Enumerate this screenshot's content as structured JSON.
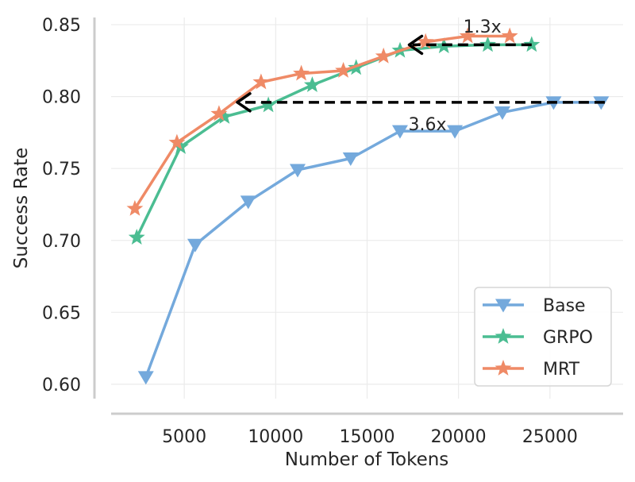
{
  "chart_data": {
    "type": "line",
    "title": "",
    "xlabel": "Number of Tokens",
    "ylabel": "Success Rate",
    "xlim": [
      1000,
      29000
    ],
    "ylim": [
      0.59,
      0.855
    ],
    "xticks": [
      5000,
      10000,
      15000,
      20000,
      25000
    ],
    "xtick_labels": [
      "5000",
      "10000",
      "15000",
      "20000",
      "25000"
    ],
    "yticks": [
      0.6,
      0.65,
      0.7,
      0.75,
      0.8,
      0.85
    ],
    "ytick_labels": [
      "0.60",
      "0.65",
      "0.70",
      "0.75",
      "0.80",
      "0.85"
    ],
    "grid": true,
    "legend_position": "bottom-right",
    "series": [
      {
        "name": "Base",
        "color": "#74a9dc",
        "marker": "triangle-down",
        "x": [
          2900,
          5600,
          8500,
          11200,
          14100,
          16800,
          19800,
          22400,
          25200,
          27800
        ],
        "y": [
          0.605,
          0.697,
          0.727,
          0.749,
          0.757,
          0.776,
          0.776,
          0.789,
          0.796,
          0.796
        ]
      },
      {
        "name": "GRPO",
        "color": "#4bbd92",
        "marker": "star",
        "x": [
          2400,
          4800,
          7200,
          9600,
          12000,
          14400,
          16800,
          19200,
          21600,
          24000
        ],
        "y": [
          0.702,
          0.765,
          0.786,
          0.794,
          0.808,
          0.82,
          0.832,
          0.835,
          0.836,
          0.836
        ]
      },
      {
        "name": "MRT",
        "color": "#ef8a66",
        "marker": "star",
        "x": [
          2300,
          4600,
          6900,
          9200,
          11400,
          13700,
          15900,
          18200,
          20500,
          22800
        ],
        "y": [
          0.722,
          0.768,
          0.788,
          0.81,
          0.816,
          0.818,
          0.828,
          0.838,
          0.842,
          0.842
        ]
      }
    ],
    "annotations": [
      {
        "text": "1.3x",
        "x_from": 24000,
        "x_to": 17300,
        "y": 0.836,
        "label_x": 21300,
        "label_y": 0.849
      },
      {
        "text": "3.6x",
        "x_from": 28000,
        "x_to": 7900,
        "y": 0.796,
        "label_x": 18300,
        "label_y": 0.781
      }
    ]
  }
}
